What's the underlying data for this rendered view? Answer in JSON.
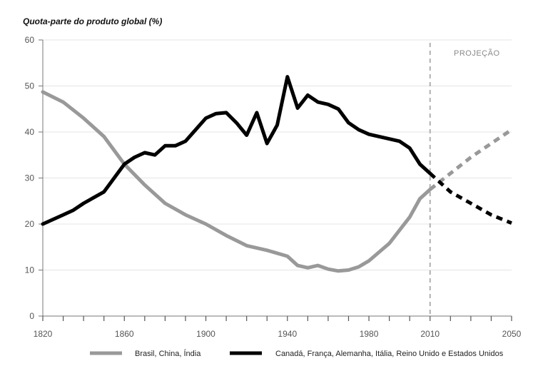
{
  "chart_data": {
    "type": "line",
    "title": "Quota-parte do produto global (%)",
    "projection_label": "PROJEÇÃO",
    "projection_start": 2010,
    "xlim": [
      1820,
      2050
    ],
    "ylim": [
      0,
      60
    ],
    "x_ticks": [
      1820,
      1860,
      1900,
      1940,
      1980,
      2010,
      2050
    ],
    "y_ticks": [
      0,
      10,
      20,
      30,
      40,
      50,
      60
    ],
    "legend_position": "bottom",
    "series": [
      {
        "name": "Brasil, China, Índia",
        "color": "#999999",
        "points": [
          [
            1820,
            48.7
          ],
          [
            1830,
            46.5
          ],
          [
            1840,
            43
          ],
          [
            1850,
            39
          ],
          [
            1860,
            33
          ],
          [
            1870,
            28.5
          ],
          [
            1880,
            24.5
          ],
          [
            1890,
            22
          ],
          [
            1900,
            20
          ],
          [
            1910,
            17.5
          ],
          [
            1920,
            15.3
          ],
          [
            1930,
            14.3
          ],
          [
            1940,
            13
          ],
          [
            1945,
            11
          ],
          [
            1950,
            10.5
          ],
          [
            1955,
            11
          ],
          [
            1960,
            10.2
          ],
          [
            1965,
            9.8
          ],
          [
            1970,
            10
          ],
          [
            1975,
            10.7
          ],
          [
            1980,
            12
          ],
          [
            1990,
            15.8
          ],
          [
            2000,
            21.5
          ],
          [
            2005,
            25.5
          ],
          [
            2010,
            27.5
          ]
        ],
        "projection": [
          [
            2010,
            27.5
          ],
          [
            2020,
            31
          ],
          [
            2030,
            34.5
          ],
          [
            2040,
            37.5
          ],
          [
            2050,
            40.5
          ]
        ]
      },
      {
        "name": "Canadá, França, Alemanha, Itália, Reino Unido e Estados Unidos",
        "color": "#000000",
        "points": [
          [
            1820,
            20
          ],
          [
            1830,
            22
          ],
          [
            1835,
            23
          ],
          [
            1840,
            24.5
          ],
          [
            1850,
            27
          ],
          [
            1855,
            30
          ],
          [
            1860,
            33
          ],
          [
            1865,
            34.5
          ],
          [
            1870,
            35.5
          ],
          [
            1875,
            35
          ],
          [
            1880,
            37
          ],
          [
            1885,
            37
          ],
          [
            1890,
            38
          ],
          [
            1895,
            40.5
          ],
          [
            1900,
            43
          ],
          [
            1905,
            44
          ],
          [
            1910,
            44.2
          ],
          [
            1915,
            42
          ],
          [
            1920,
            39.3
          ],
          [
            1925,
            44.2
          ],
          [
            1930,
            37.5
          ],
          [
            1935,
            41.5
          ],
          [
            1940,
            52
          ],
          [
            1945,
            45.2
          ],
          [
            1950,
            48
          ],
          [
            1955,
            46.5
          ],
          [
            1960,
            46
          ],
          [
            1965,
            45
          ],
          [
            1970,
            42
          ],
          [
            1975,
            40.5
          ],
          [
            1980,
            39.5
          ],
          [
            1985,
            39
          ],
          [
            1990,
            38.5
          ],
          [
            1995,
            38
          ],
          [
            2000,
            36.5
          ],
          [
            2005,
            33
          ],
          [
            2010,
            31
          ]
        ],
        "projection": [
          [
            2010,
            31
          ],
          [
            2020,
            27
          ],
          [
            2030,
            24.5
          ],
          [
            2040,
            22
          ],
          [
            2050,
            20.2
          ]
        ]
      }
    ]
  }
}
